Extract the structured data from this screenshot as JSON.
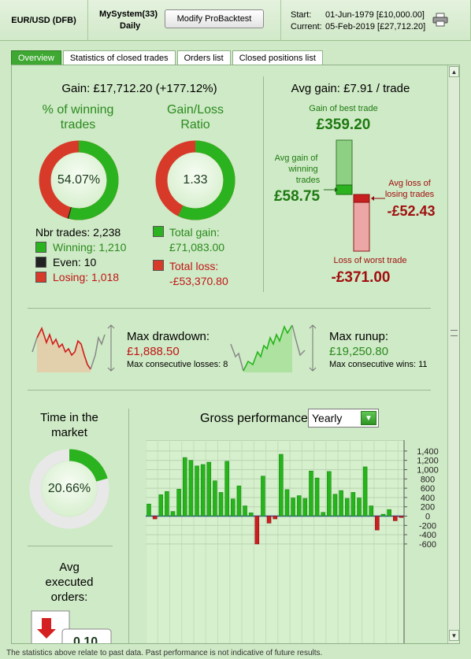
{
  "header": {
    "symbol": "EUR/USD (DFB)",
    "system_name": "MySystem(33)",
    "timeframe": "Daily",
    "modify_button": "Modify ProBacktest",
    "start_label": "Start:",
    "start_value": "01-Jun-1979  [£10,000.00]",
    "current_label": "Current:",
    "current_value": "05-Feb-2019  [£27,712.20]",
    "printer_icon": "printer-icon"
  },
  "tabs": [
    "Overview",
    "Statistics of closed trades",
    "Orders list",
    "Closed positions list"
  ],
  "gain": {
    "summary": "Gain: £17,712.20 (+177.12%)",
    "winning_title_1": "% of winning",
    "winning_title_2": "trades",
    "winning_pct_text": "54.07%",
    "winning_fraction": 0.5407,
    "even_fraction": 0.0045,
    "ratio_title_1": "Gain/Loss",
    "ratio_title_2": "Ratio",
    "ratio_text": "1.33",
    "ratio_gain_fraction": 0.5711
  },
  "trades": {
    "nbr": "Nbr trades: 2,238",
    "winning": "Winning: 1,210",
    "even": "Even: 10",
    "losing": "Losing: 1,018"
  },
  "totals": {
    "gain_label": "Total gain:",
    "gain_value": "£71,083.00",
    "loss_label": "Total loss:",
    "loss_value": "-£53,370.80"
  },
  "avg": {
    "title": "Avg gain: £7.91 / trade",
    "best_label": "Gain of best trade",
    "best_value": "£359.20",
    "avg_gain_label_1": "Avg gain of",
    "avg_gain_label_2": "winning",
    "avg_gain_label_3": "trades",
    "avg_gain_value": "£58.75",
    "avg_loss_label_1": "Avg loss of",
    "avg_loss_label_2": "losing trades",
    "avg_loss_value": "-£52.43",
    "worst_label": "Loss of worst trade",
    "worst_value": "-£371.00"
  },
  "drawdown": {
    "label": "Max drawdown:",
    "value": "£1,888.50",
    "sub": "Max consecutive losses: 8"
  },
  "runup": {
    "label": "Max runup:",
    "value": "£19,250.80",
    "sub": "Max consecutive wins: 11"
  },
  "market": {
    "title_1": "Time in the",
    "title_2": "market",
    "pct_text": "20.66%",
    "fraction": 0.2066
  },
  "orders": {
    "title_1": "Avg",
    "title_2": "executed",
    "title_3": "orders:",
    "value_partial": "0.10"
  },
  "performance": {
    "title": "Gross performance",
    "period": "Yearly"
  },
  "chart_data": {
    "type": "bar",
    "yticks": [
      1400,
      1200,
      1000,
      800,
      600,
      400,
      200,
      0,
      -200,
      -400,
      -600
    ],
    "ytick_labels": [
      "1,400",
      "1,200",
      "1,000",
      "800",
      "600",
      "400",
      "200",
      "0",
      "-200",
      "-400",
      "-600"
    ],
    "ylim": [
      -600,
      1500
    ],
    "values": [
      260,
      -60,
      460,
      530,
      100,
      580,
      1260,
      1200,
      1080,
      1110,
      1160,
      760,
      510,
      1180,
      370,
      650,
      220,
      70,
      -600,
      860,
      -150,
      -60,
      1330,
      570,
      390,
      440,
      380,
      970,
      820,
      80,
      960,
      470,
      550,
      380,
      510,
      390,
      1060,
      220,
      -300,
      40,
      140,
      -100,
      -30
    ],
    "colors": {
      "positive": "#25b51b",
      "negative": "#cc1f1f"
    }
  },
  "footer": "The statistics above relate to past data. Past performance is not indicative of future results."
}
